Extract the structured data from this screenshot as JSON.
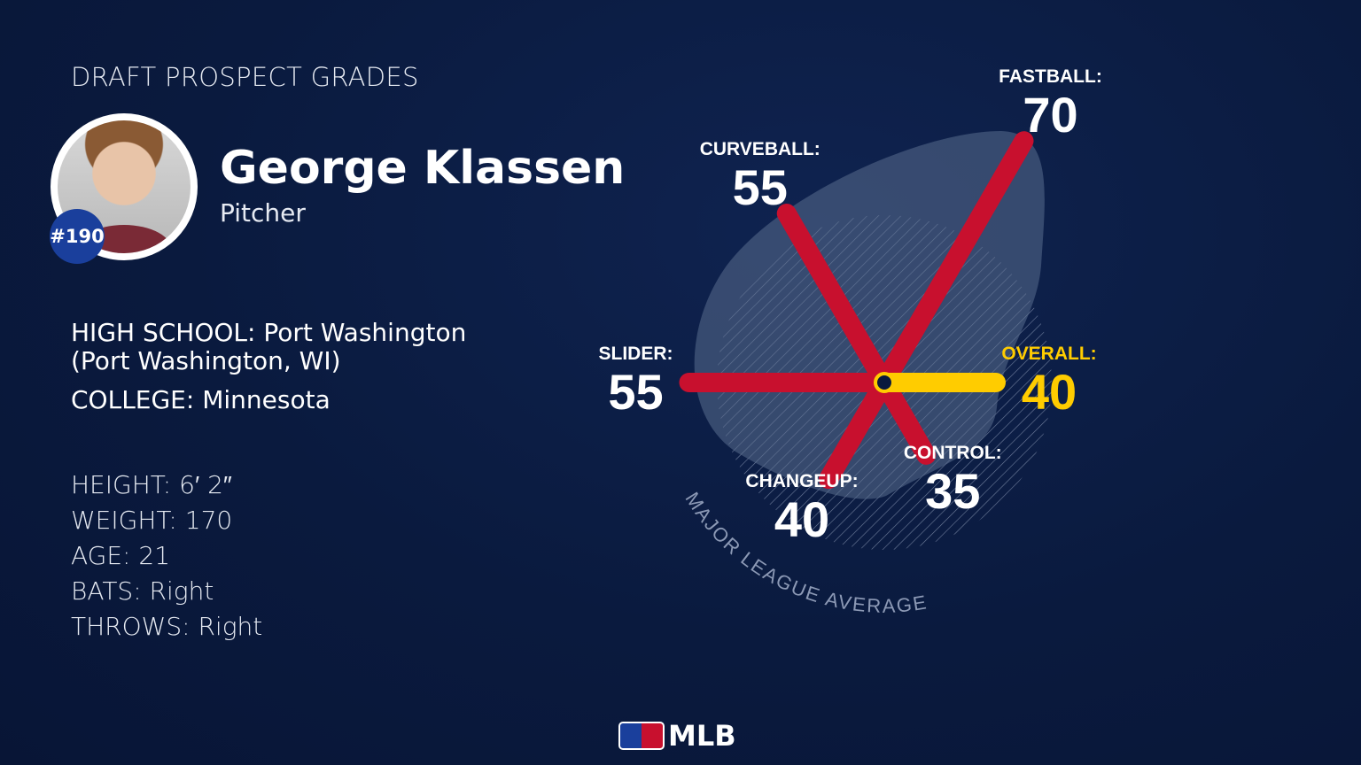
{
  "header": {
    "title": "DRAFT PROSPECT GRADES"
  },
  "player": {
    "name": "George Klassen",
    "position": "Pitcher",
    "rank": "#190",
    "high_school_label": "HIGH SCHOOL:",
    "high_school": "Port Washington",
    "high_school_location": "(Port Washington, WI)",
    "college_label": "COLLEGE:",
    "college": "Minnesota",
    "stats": [
      {
        "label": "HEIGHT:",
        "value": "6′ 2″"
      },
      {
        "label": "WEIGHT:",
        "value": "170"
      },
      {
        "label": "AGE:",
        "value": "21"
      },
      {
        "label": "BATS:",
        "value": "Right"
      },
      {
        "label": "THROWS:",
        "value": "Right"
      }
    ]
  },
  "chart_data": {
    "type": "radar",
    "reference_label": "MAJOR LEAGUE AVERAGE",
    "reference_value": 50,
    "scale": [
      20,
      80
    ],
    "axes": [
      {
        "label": "FASTBALL:",
        "value": 70,
        "angle_deg": -60,
        "color": "#c8102e"
      },
      {
        "label": "CURVEBALL:",
        "value": 55,
        "angle_deg": -120,
        "color": "#c8102e"
      },
      {
        "label": "SLIDER:",
        "value": 55,
        "angle_deg": 180,
        "color": "#c8102e"
      },
      {
        "label": "CHANGEUP:",
        "value": 40,
        "angle_deg": 120,
        "color": "#c8102e"
      },
      {
        "label": "CONTROL:",
        "value": 35,
        "angle_deg": 60,
        "color": "#c8102e"
      },
      {
        "label": "OVERALL:",
        "value": 40,
        "angle_deg": 0,
        "color": "#ffcc00"
      }
    ]
  },
  "footer": {
    "logo": "MLB"
  }
}
